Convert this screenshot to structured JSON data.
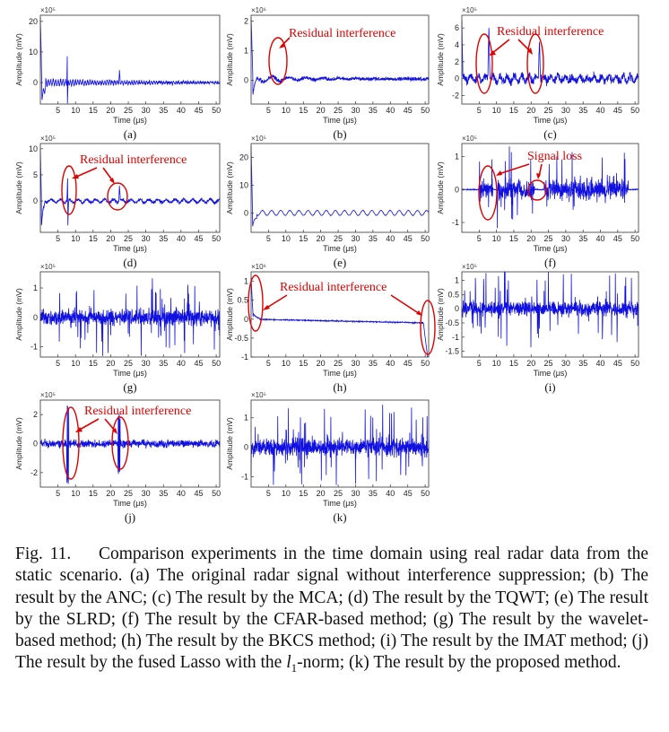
{
  "figure": {
    "panels": [
      {
        "id": "a",
        "label": "(a)",
        "exp": "×10⁵",
        "ylabel": "Amplitude (mV)",
        "yticks": [
          {
            "v": 0,
            "t": "0"
          },
          {
            "v": 10,
            "t": "10"
          },
          {
            "v": 20,
            "t": "20"
          }
        ],
        "ylim": [
          -7,
          22
        ],
        "xlabel": "Time (μs)",
        "xticks": [
          5,
          10,
          15,
          20,
          25,
          30,
          35,
          40,
          45,
          50
        ],
        "xlim": [
          0,
          51
        ],
        "profile": "original"
      },
      {
        "id": "b",
        "label": "(b)",
        "exp": "×10⁶",
        "ylabel": "Amplitude (mV)",
        "yticks": [
          {
            "v": 0,
            "t": "0"
          },
          {
            "v": 1,
            "t": "1"
          },
          {
            "v": 2,
            "t": "2"
          }
        ],
        "ylim": [
          -0.8,
          2.2
        ],
        "xlabel": "Time (μs)",
        "xticks": [
          5,
          10,
          15,
          20,
          25,
          30,
          35,
          40,
          45,
          50
        ],
        "xlim": [
          0,
          51
        ],
        "profile": "anc"
      },
      {
        "id": "c",
        "label": "(c)",
        "exp": "×10⁵",
        "ylabel": "Amplitude (mV)",
        "yticks": [
          {
            "v": -2,
            "t": "-2"
          },
          {
            "v": 0,
            "t": "0"
          },
          {
            "v": 2,
            "t": "2"
          },
          {
            "v": 4,
            "t": "4"
          },
          {
            "v": 6,
            "t": "6"
          }
        ],
        "ylim": [
          -3,
          7.5
        ],
        "xlabel": "Time (μs)",
        "xticks": [
          5,
          10,
          15,
          20,
          25,
          30,
          35,
          40,
          45,
          50
        ],
        "xlim": [
          0,
          51
        ],
        "profile": "mca"
      },
      {
        "id": "d",
        "label": "(d)",
        "exp": "×10⁵",
        "ylabel": "Amplitude (mV)",
        "yticks": [
          {
            "v": 0,
            "t": "0"
          },
          {
            "v": 5,
            "t": "5"
          },
          {
            "v": 10,
            "t": "10"
          }
        ],
        "ylim": [
          -6,
          11
        ],
        "xlabel": "Time (μs)",
        "xticks": [
          5,
          10,
          15,
          20,
          25,
          30,
          35,
          40,
          45,
          50
        ],
        "xlim": [
          0,
          51
        ],
        "profile": "tqwt"
      },
      {
        "id": "e",
        "label": "(e)",
        "exp": "×10⁵",
        "ylabel": "Amplitude (mV)",
        "yticks": [
          {
            "v": 0,
            "t": "0"
          },
          {
            "v": 10,
            "t": "10"
          },
          {
            "v": 20,
            "t": "20"
          }
        ],
        "ylim": [
          -7,
          25
        ],
        "xlabel": "Time (μs)",
        "xticks": [
          5,
          10,
          15,
          20,
          25,
          30,
          35,
          40,
          45,
          50
        ],
        "xlim": [
          0,
          51
        ],
        "profile": "slrd"
      },
      {
        "id": "f",
        "label": "(f)",
        "exp": "×10⁵",
        "ylabel": "Amplitude (mV)",
        "yticks": [
          {
            "v": -1,
            "t": "-1"
          },
          {
            "v": 0,
            "t": "0"
          },
          {
            "v": 1,
            "t": "1"
          }
        ],
        "ylim": [
          -1.3,
          1.4
        ],
        "xlabel": "Time (μs)",
        "xticks": [
          5,
          10,
          15,
          20,
          25,
          30,
          35,
          40,
          45,
          50
        ],
        "xlim": [
          0,
          51
        ],
        "profile": "cfar"
      },
      {
        "id": "g",
        "label": "(g)",
        "exp": "×10⁵",
        "ylabel": "Amplitude (mV)",
        "yticks": [
          {
            "v": -1,
            "t": "-1"
          },
          {
            "v": 0,
            "t": "0"
          },
          {
            "v": 1,
            "t": "1"
          }
        ],
        "ylim": [
          -1.35,
          1.55
        ],
        "xlabel": "Time (μs)",
        "xticks": [
          5,
          10,
          15,
          20,
          25,
          30,
          35,
          40,
          45,
          50
        ],
        "xlim": [
          0,
          51
        ],
        "profile": "wavelet"
      },
      {
        "id": "h",
        "label": "(h)",
        "exp": "×10⁶",
        "ylabel": "Amplitude (mV)",
        "yticks": [
          {
            "v": -1,
            "t": "-1"
          },
          {
            "v": -0.5,
            "t": "-0.5"
          },
          {
            "v": 0,
            "t": "0"
          },
          {
            "v": 0.5,
            "t": "0.5"
          },
          {
            "v": 1,
            "t": "1"
          }
        ],
        "ylim": [
          -1,
          1.25
        ],
        "xlabel": "Time (μs)",
        "xticks": [
          5,
          10,
          15,
          20,
          25,
          30,
          35,
          40,
          45,
          50
        ],
        "xlim": [
          0,
          51
        ],
        "profile": "bkcs"
      },
      {
        "id": "i",
        "label": "(i)",
        "exp": "×10⁵",
        "ylabel": "Amplitude (mV)",
        "yticks": [
          {
            "v": -1.5,
            "t": "-1.5"
          },
          {
            "v": -1,
            "t": "-1"
          },
          {
            "v": -0.5,
            "t": "-0.5"
          },
          {
            "v": 0,
            "t": "0"
          },
          {
            "v": 0.5,
            "t": "0.5"
          },
          {
            "v": 1,
            "t": "1"
          }
        ],
        "ylim": [
          -1.7,
          1.3
        ],
        "xlabel": "Time (μs)",
        "xticks": [
          5,
          10,
          15,
          20,
          25,
          30,
          35,
          40,
          45,
          50
        ],
        "xlim": [
          0,
          51
        ],
        "profile": "imat"
      },
      {
        "id": "j",
        "label": "(j)",
        "exp": "×10⁵",
        "ylabel": "Amplitude (mV)",
        "yticks": [
          {
            "v": -2,
            "t": "-2"
          },
          {
            "v": 0,
            "t": "0"
          },
          {
            "v": 2,
            "t": "2"
          }
        ],
        "ylim": [
          -3,
          3
        ],
        "xlabel": "Time (μs)",
        "xticks": [
          5,
          10,
          15,
          20,
          25,
          30,
          35,
          40,
          45,
          50
        ],
        "xlim": [
          0,
          51
        ],
        "profile": "lasso"
      },
      {
        "id": "k",
        "label": "(k)",
        "exp": "×10⁵",
        "ylabel": "Amplitude (mV)",
        "yticks": [
          {
            "v": -1,
            "t": "-1"
          },
          {
            "v": 0,
            "t": "0"
          },
          {
            "v": 1,
            "t": "1"
          }
        ],
        "ylim": [
          -1.35,
          1.6
        ],
        "xlabel": "Time (μs)",
        "xticks": [
          5,
          10,
          15,
          20,
          25,
          30,
          35,
          40,
          45,
          50
        ],
        "xlim": [
          0,
          51
        ],
        "profile": "proposed"
      }
    ],
    "annotations": {
      "residual": "Residual interference",
      "signal_loss": "Signal loss"
    },
    "colors": {
      "trace": "#1010e0",
      "annotation": "#e00000",
      "axis": "#333333"
    }
  },
  "caption": {
    "fig_num": "Fig. 11.",
    "text_before_l1": "Comparison experiments in the time domain using real radar data from the static scenario. (a) The original radar signal without interference suppression; (b) The result by the ANC; (c) The result by the MCA; (d) The result by the TQWT; (e) The result by the SLRD; (f) The result by the CFAR-based method; (g) The result by the wavelet-based method; (h) The result by the BKCS method; (i) The result by the IMAT method; (j) The result by the fused Lasso with the ",
    "l_letter": "l",
    "l_sub": "1",
    "text_after_l1": "-norm; (k) The result by the proposed method."
  }
}
